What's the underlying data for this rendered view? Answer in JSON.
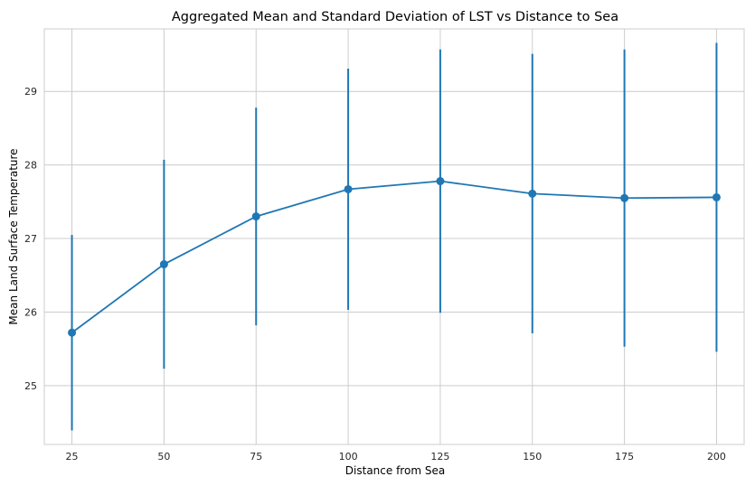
{
  "chart_data": {
    "type": "line",
    "title": "Aggregated Mean and Standard Deviation of LST vs Distance to Sea",
    "xlabel": "Distance from Sea",
    "ylabel": "Mean Land Surface Temperature",
    "x": [
      25,
      50,
      75,
      100,
      125,
      150,
      175,
      200
    ],
    "series": [
      {
        "mean": [
          25.72,
          26.65,
          27.3,
          27.67,
          27.78,
          27.61,
          27.55,
          27.56
        ],
        "std": [
          1.33,
          1.42,
          1.48,
          1.64,
          1.79,
          1.9,
          2.02,
          2.1
        ]
      }
    ],
    "x_ticks": [
      25,
      50,
      75,
      100,
      125,
      150,
      175,
      200
    ],
    "y_ticks": [
      25,
      26,
      27,
      28,
      29
    ],
    "xlim": [
      17.5,
      207.5
    ],
    "ylim": [
      24.2,
      29.85
    ],
    "grid": true,
    "line_color": "#1f77b4",
    "errorbars": true,
    "marker": "circle"
  }
}
